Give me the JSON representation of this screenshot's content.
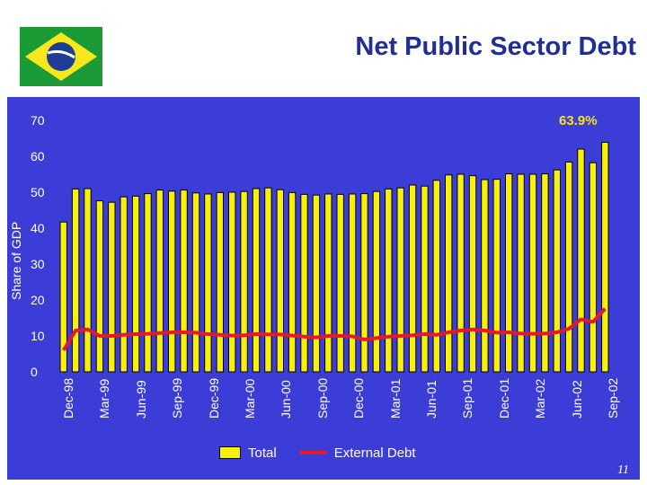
{
  "slide": {
    "title": "Net Public Sector Debt",
    "page_number": "11"
  },
  "colors": {
    "background": "#3c3cd6",
    "title_text": "#1f2f97",
    "bar_fill": "#f7f10a",
    "line": "#e8172a",
    "annotation": "#f7e31a",
    "flag_green": "#1a9b35",
    "flag_yellow": "#f8e71c",
    "flag_blue": "#1f3d93"
  },
  "chart_data": {
    "type": "bar",
    "title": "Net Public Sector Debt",
    "xlabel": "",
    "ylabel": "Share of GDP",
    "ylim": [
      0,
      70
    ],
    "y_ticks": [
      "0",
      "10",
      "20",
      "30",
      "40",
      "50",
      "60",
      "70"
    ],
    "tick_labels": [
      "Dec-98",
      "Mar-99",
      "Jun-99",
      "Sep-99",
      "Dec-99",
      "Mar-00",
      "Jun-00",
      "Sep-00",
      "Dec-00",
      "Mar-01",
      "Jun-01",
      "Sep-01",
      "Dec-01",
      "Mar-02",
      "Jun-02",
      "Sep-02"
    ],
    "annotation": "63.9%",
    "legend": [
      "Total",
      "External Debt"
    ],
    "series": [
      {
        "name": "Total",
        "type": "bar",
        "values": [
          41.7,
          50.9,
          51.0,
          47.6,
          47.2,
          48.7,
          48.9,
          49.6,
          50.6,
          50.3,
          50.6,
          49.8,
          49.5,
          49.9,
          50.0,
          50.2,
          51.0,
          51.2,
          50.7,
          49.9,
          49.4,
          49.2,
          49.5,
          49.4,
          49.5,
          49.6,
          50.2,
          50.9,
          51.2,
          52.0,
          51.7,
          53.3,
          54.8,
          55.0,
          54.6,
          53.5,
          53.6,
          55.1,
          55.0,
          55.0,
          55.1,
          56.2,
          58.4,
          62.0,
          58.2,
          63.9
        ]
      },
      {
        "name": "External Debt",
        "type": "line",
        "values": [
          6.0,
          11.5,
          11.8,
          10.0,
          10.0,
          10.3,
          10.5,
          10.6,
          10.8,
          11.0,
          11.0,
          10.9,
          10.5,
          10.3,
          10.1,
          10.2,
          10.5,
          10.4,
          10.4,
          10.1,
          9.8,
          9.6,
          10.0,
          10.0,
          9.9,
          9.0,
          9.4,
          9.8,
          10.0,
          10.2,
          10.5,
          10.3,
          11.0,
          11.5,
          11.8,
          11.5,
          10.9,
          11.0,
          10.7,
          10.6,
          10.7,
          11.0,
          12.0,
          14.6,
          13.9,
          17.6
        ]
      }
    ]
  }
}
